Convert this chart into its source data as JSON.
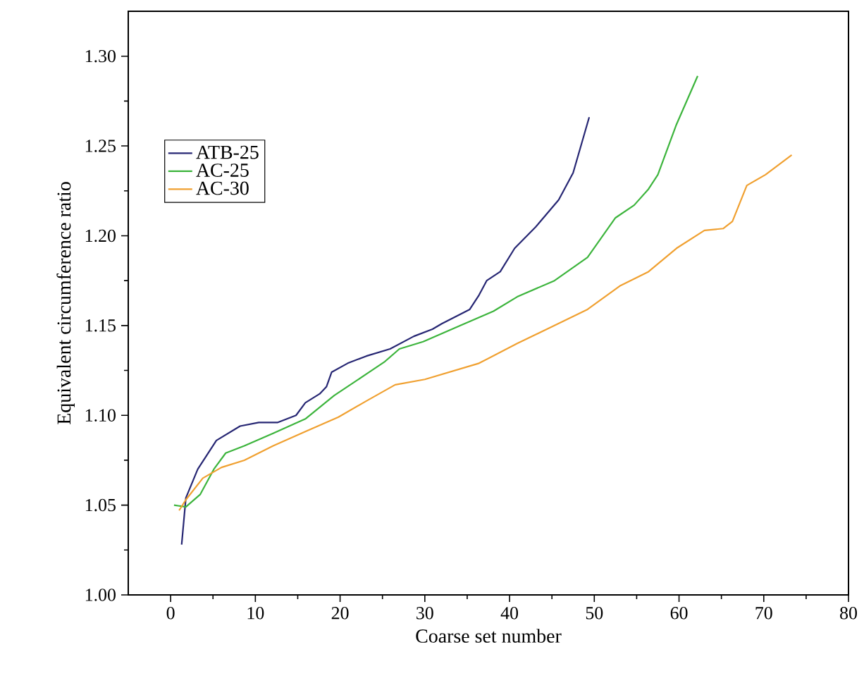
{
  "chart_data": {
    "type": "line",
    "xlabel": "Coarse set number",
    "ylabel": "Equivalent circumference ratio",
    "xlim": [
      -5,
      80
    ],
    "ylim": [
      1.0,
      1.325
    ],
    "xticks": [
      0,
      {
        "value": 5,
        "label": null
      },
      10,
      {
        "value": 15,
        "label": null
      },
      20,
      {
        "value": 25,
        "label": null
      },
      30,
      {
        "value": 35,
        "label": null
      },
      40,
      {
        "value": 45,
        "label": null
      },
      50,
      {
        "value": 55,
        "label": null
      },
      60,
      {
        "value": 65,
        "label": null
      },
      70,
      {
        "value": 75,
        "label": null
      },
      80
    ],
    "yticks": [
      {
        "value": 1.0,
        "label": "1.00"
      },
      {
        "value": 1.025,
        "label": null
      },
      {
        "value": 1.05,
        "label": "1.05"
      },
      {
        "value": 1.075,
        "label": null
      },
      {
        "value": 1.1,
        "label": "1.10"
      },
      {
        "value": 1.125,
        "label": null
      },
      {
        "value": 1.15,
        "label": "1.15"
      },
      {
        "value": 1.175,
        "label": null
      },
      {
        "value": 1.2,
        "label": "1.20"
      },
      {
        "value": 1.225,
        "label": null
      },
      {
        "value": 1.25,
        "label": "1.25"
      },
      {
        "value": 1.275,
        "label": null
      },
      {
        "value": 1.3,
        "label": "1.30"
      }
    ],
    "legend": "top left",
    "grid": false,
    "marker": "none",
    "line_style": "solid",
    "series": [
      {
        "name": "ATB-25",
        "color": "#262673",
        "x": [
          1.3,
          1.8,
          3.2,
          5.4,
          8.2,
          10.4,
          12.6,
          14.8,
          15.9,
          17.6,
          18.4,
          19.0,
          20.9,
          23.1,
          25.9,
          28.7,
          30.9,
          32.0,
          35.3,
          36.4,
          37.3,
          38.9,
          40.6,
          43.1,
          45.8,
          47.5,
          49.4
        ],
        "values": [
          1.028,
          1.054,
          1.07,
          1.086,
          1.094,
          1.096,
          1.096,
          1.1,
          1.107,
          1.112,
          1.116,
          1.124,
          1.129,
          1.133,
          1.137,
          1.144,
          1.148,
          1.151,
          1.159,
          1.167,
          1.175,
          1.18,
          1.193,
          1.205,
          1.22,
          1.235,
          1.266
        ]
      },
      {
        "name": "AC-25",
        "color": "#3cb43c",
        "x": [
          0.4,
          1.8,
          3.5,
          5.1,
          6.5,
          8.7,
          12.1,
          15.9,
          19.3,
          23.1,
          25.3,
          27.0,
          29.8,
          34.2,
          38.1,
          40.9,
          45.3,
          49.2,
          52.5,
          54.7,
          56.4,
          57.5,
          59.7,
          62.2
        ],
        "values": [
          1.05,
          1.049,
          1.056,
          1.07,
          1.079,
          1.083,
          1.09,
          1.098,
          1.111,
          1.123,
          1.13,
          1.137,
          1.141,
          1.15,
          1.158,
          1.166,
          1.175,
          1.188,
          1.21,
          1.217,
          1.226,
          1.234,
          1.262,
          1.289
        ]
      },
      {
        "name": "AC-30",
        "color": "#f0a030",
        "x": [
          1.0,
          1.8,
          3.8,
          6.0,
          8.7,
          12.1,
          15.9,
          19.8,
          23.1,
          26.5,
          30.0,
          36.4,
          40.9,
          45.3,
          49.2,
          53.0,
          56.4,
          59.7,
          63.0,
          65.2,
          66.3,
          68.0,
          70.2,
          73.3
        ],
        "values": [
          1.047,
          1.053,
          1.065,
          1.071,
          1.075,
          1.083,
          1.091,
          1.099,
          1.108,
          1.117,
          1.12,
          1.129,
          1.14,
          1.15,
          1.159,
          1.172,
          1.18,
          1.193,
          1.203,
          1.204,
          1.208,
          1.228,
          1.234,
          1.245
        ]
      }
    ]
  }
}
